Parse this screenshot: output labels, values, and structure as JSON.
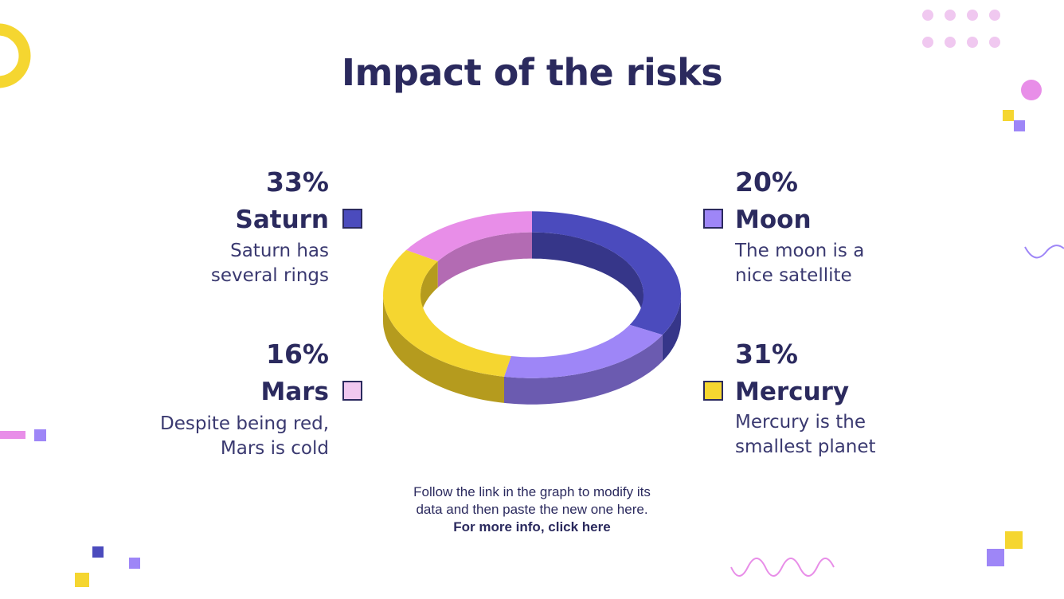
{
  "title": "Impact of the risks",
  "chart_data": {
    "type": "pie",
    "variant": "3d-donut",
    "categories": [
      "Saturn",
      "Moon",
      "Mercury",
      "Mars"
    ],
    "values": [
      33,
      20,
      31,
      16
    ],
    "colors": [
      "#4b4bbd",
      "#9e86f7",
      "#f5d630",
      "#e88ee8"
    ],
    "side_colors": [
      "#363689",
      "#6b5bb0",
      "#b59b1e",
      "#b36bb3"
    ],
    "series": [
      {
        "name": "Saturn",
        "value": 33,
        "label": "33%",
        "description": "Saturn has several rings"
      },
      {
        "name": "Moon",
        "value": 20,
        "label": "20%",
        "description": "The moon is a nice satellite"
      },
      {
        "name": "Mercury",
        "value": 31,
        "label": "31%",
        "description": "Mercury is the smallest planet"
      },
      {
        "name": "Mars",
        "value": 16,
        "label": "16%",
        "description": "Despite being red, Mars is cold"
      }
    ]
  },
  "legend": {
    "saturn": {
      "pct": "33%",
      "name": "Saturn",
      "desc1": "Saturn has",
      "desc2": "several rings",
      "color": "#4b4bbd"
    },
    "moon": {
      "pct": "20%",
      "name": "Moon",
      "desc1": "The moon is a",
      "desc2": "nice satellite",
      "color": "#9e86f7"
    },
    "mars": {
      "pct": "16%",
      "name": "Mars",
      "desc1": "Despite being red,",
      "desc2": "Mars is cold",
      "color": "#f0c8f0"
    },
    "mercury": {
      "pct": "31%",
      "name": "Mercury",
      "desc1": "Mercury is the",
      "desc2": "smallest planet",
      "color": "#f5d630"
    }
  },
  "footnote": {
    "line1": "Follow the link in the graph to modify its",
    "line2": "data and then paste the new one here.",
    "link": "For more info, click here"
  }
}
